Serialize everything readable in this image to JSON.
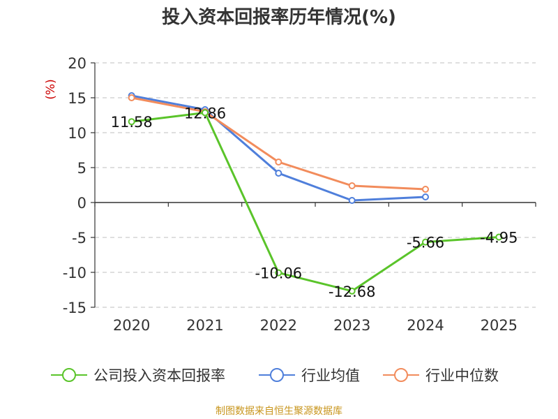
{
  "title": "投入资本回报率历年情况(%)",
  "source": "制图数据来自恒生聚源数据库",
  "colors": {
    "company": "#5ac42a",
    "industry_avg": "#4f7fdb",
    "industry_median": "#f28c5c"
  },
  "chart_data": {
    "type": "line",
    "title": "投入资本回报率历年情况(%)",
    "ylabel": "(%)",
    "xlabel": "",
    "categories": [
      "2020",
      "2021",
      "2022",
      "2023",
      "2024",
      "2025"
    ],
    "ylim": [
      -15,
      20
    ],
    "yticks": [
      20,
      15,
      10,
      5,
      0,
      -5,
      -10,
      -15
    ],
    "grid": true,
    "legend": "bottom",
    "series": [
      {
        "name": "公司投入资本回报率",
        "values": [
          11.58,
          12.86,
          -10.06,
          -12.68,
          -5.66,
          -4.95
        ],
        "labels": [
          "11.58",
          "12.86",
          "-10.06",
          "-12.68",
          "-5.66",
          "-4.95"
        ]
      },
      {
        "name": "行业均值",
        "values": [
          15.3,
          13.3,
          4.2,
          0.3,
          0.8,
          null
        ]
      },
      {
        "name": "行业中位数",
        "values": [
          15.0,
          13.0,
          5.8,
          2.4,
          1.9,
          null
        ]
      }
    ]
  }
}
